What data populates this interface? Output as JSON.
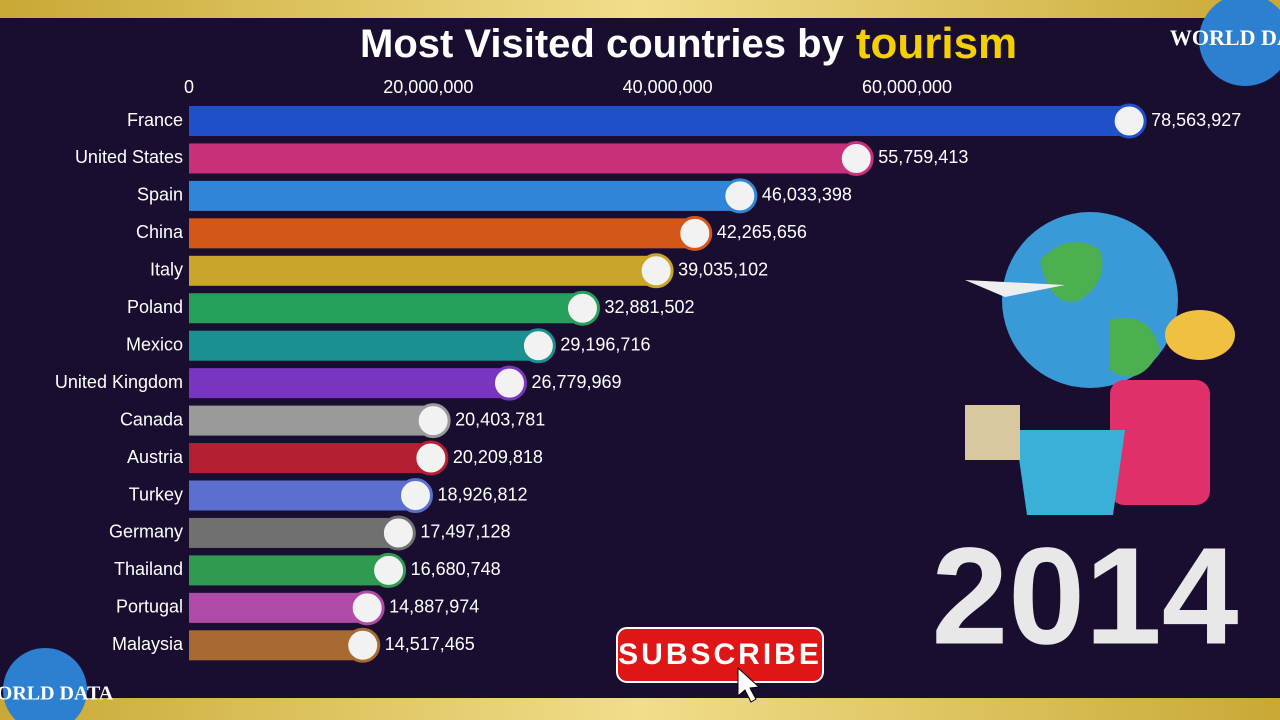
{
  "chart_data": {
    "type": "bar",
    "orientation": "horizontal",
    "title": "Most Visited countries by",
    "title_highlight": "tourism",
    "year": "2014",
    "button": "SUBSCRIBE",
    "logo": "WORLD DATA",
    "categories": [
      "France",
      "United States",
      "Spain",
      "China",
      "Italy",
      "Poland",
      "Mexico",
      "United Kingdom",
      "Canada",
      "Austria",
      "Turkey",
      "Germany",
      "Thailand",
      "Portugal",
      "Malaysia"
    ],
    "values": [
      78563927,
      55759413,
      46033398,
      42265656,
      39035102,
      32881502,
      29196716,
      26779969,
      20403781,
      20209818,
      18926812,
      17497128,
      16680748,
      14887974,
      14517465
    ],
    "value_labels": [
      "78,563,927",
      "55,759,413",
      "46,033,398",
      "42,265,656",
      "39,035,102",
      "32,881,502",
      "29,196,716",
      "26,779,969",
      "20,403,781",
      "20,209,818",
      "18,926,812",
      "17,497,128",
      "16,680,748",
      "14,887,974",
      "14,517,465"
    ],
    "colors": [
      "#1f4fc9",
      "#c8317a",
      "#2f86d8",
      "#d4571a",
      "#c9a52a",
      "#24a05a",
      "#1a9090",
      "#7a35c0",
      "#9a9a9a",
      "#b52030",
      "#5b6fd0",
      "#707070",
      "#2f9a50",
      "#b04aa8",
      "#a86a30"
    ],
    "xlim": [
      0,
      90000000
    ],
    "xticks": [
      0,
      {
        "value": 20000000,
        "label": "20,000,000"
      },
      {
        "value": 40000000,
        "label": "40,000,000"
      },
      {
        "value": 60000000,
        "label": "60,000,000"
      }
    ]
  }
}
